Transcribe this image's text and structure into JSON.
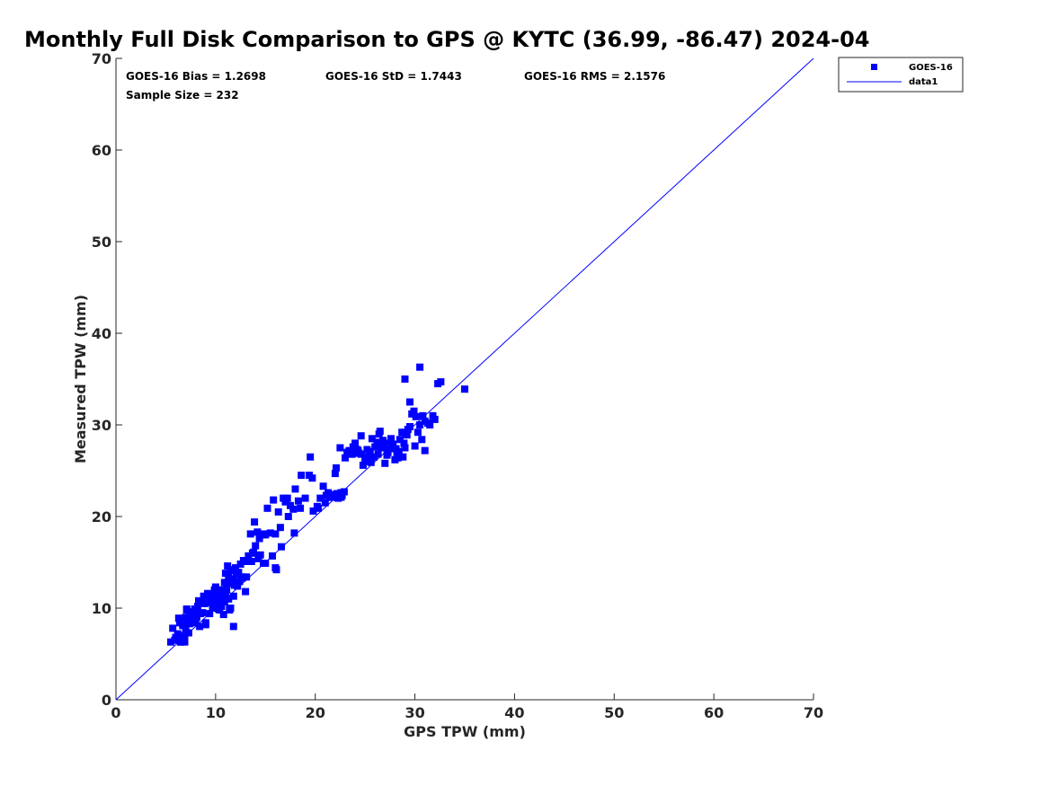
{
  "chart_data": {
    "type": "scatter",
    "title": "Monthly Full Disk Comparison to GPS @ KYTC (36.99, -86.47) 2024-04",
    "xlabel": "GPS TPW (mm)",
    "ylabel": "Measured TPW (mm)",
    "xlim": [
      0,
      70
    ],
    "ylim": [
      0,
      70
    ],
    "xticks": [
      0,
      10,
      20,
      30,
      40,
      50,
      60,
      70
    ],
    "yticks": [
      0,
      10,
      20,
      30,
      40,
      50,
      60,
      70
    ],
    "xtick_labels": [
      "0",
      "10",
      "20",
      "30",
      "40",
      "50",
      "60",
      "70"
    ],
    "ytick_labels": [
      "0",
      "10",
      "20",
      "30",
      "40",
      "50",
      "60",
      "70"
    ],
    "grid": false,
    "legend_position": "top-right-outside",
    "stats": {
      "bias": "GOES-16 Bias = 1.2698",
      "std": "GOES-16 StD = 1.7443",
      "rms": "GOES-16 RMS = 2.1576",
      "sample_size": "Sample Size = 232"
    },
    "series": [
      {
        "name": "GOES-16",
        "kind": "scatter",
        "marker": "square",
        "color": "#0000ff",
        "x": [
          5.5,
          5.7,
          5.9,
          6.0,
          6.2,
          6.3,
          6.4,
          6.5,
          6.6,
          6.7,
          6.8,
          6.9,
          7.0,
          7.0,
          7.1,
          7.2,
          7.3,
          7.4,
          7.5,
          7.6,
          7.7,
          7.8,
          8.0,
          8.1,
          8.2,
          8.3,
          8.5,
          8.6,
          8.8,
          8.9,
          9.0,
          9.1,
          9.2,
          9.4,
          9.5,
          9.6,
          9.7,
          9.8,
          9.9,
          10.0,
          10.0,
          10.1,
          10.2,
          10.3,
          10.3,
          10.4,
          10.5,
          10.6,
          10.7,
          10.8,
          10.9,
          11.0,
          11.0,
          11.1,
          11.2,
          11.3,
          11.3,
          11.4,
          11.5,
          11.6,
          11.7,
          11.8,
          11.9,
          12.0,
          12.1,
          12.2,
          12.3,
          12.5,
          12.7,
          12.9,
          13.0,
          13.3,
          13.5,
          13.7,
          13.9,
          14.0,
          14.2,
          14.4,
          14.6,
          14.8,
          15.0,
          15.2,
          15.5,
          15.8,
          16.0,
          16.3,
          16.5,
          16.8,
          17.0,
          17.3,
          17.5,
          17.8,
          18.0,
          18.3,
          18.6,
          19.0,
          19.5,
          19.8,
          20.2,
          20.5,
          20.8,
          21.0,
          21.2,
          21.3,
          21.5,
          21.6,
          21.8,
          22.0,
          22.1,
          22.2,
          22.3,
          22.5,
          22.7,
          22.9,
          23.0,
          23.2,
          23.4,
          23.6,
          23.8,
          24.0,
          24.2,
          24.4,
          24.6,
          24.8,
          25.0,
          25.2,
          25.4,
          25.5,
          25.7,
          25.9,
          26.0,
          26.2,
          26.3,
          26.5,
          26.7,
          26.9,
          27.0,
          27.2,
          27.4,
          27.6,
          27.8,
          28.0,
          28.2,
          28.4,
          28.5,
          28.7,
          28.9,
          29.0,
          29.3,
          29.5,
          29.7,
          29.9,
          30.1,
          30.3,
          30.5,
          30.8,
          31.0,
          31.3,
          31.5,
          32.0,
          32.3,
          32.6,
          35.0,
          30.5,
          29.0,
          29.5,
          6.1,
          7.4,
          8.7,
          9.3,
          10.6,
          11.1,
          11.7,
          12.4,
          13.1,
          14.3,
          15.7,
          16.1,
          16.6,
          17.9,
          19.7,
          21.1,
          22.6,
          24.1,
          25.3,
          26.4,
          27.3,
          28.1,
          28.8,
          30.0,
          31.0,
          11.8,
          12.8,
          15.0,
          16.0,
          13.8,
          14.9,
          18.5,
          20.3,
          22.6,
          24.6,
          26.2,
          9.9,
          10.8,
          11.9,
          8.4,
          7.9,
          6.9,
          6.5,
          9.0,
          10.4,
          11.5,
          12.6,
          13.6,
          14.5,
          17.2,
          19.4,
          21.6,
          23.7,
          25.6,
          27.6,
          29.2,
          30.7,
          31.8,
          24.3,
          26.8,
          28.3,
          12.2,
          10.9,
          11.4,
          8.1,
          7.1
        ],
        "y": [
          6.3,
          7.8,
          6.5,
          6.8,
          7.2,
          8.9,
          8.4,
          6.3,
          7.0,
          8.1,
          8.6,
          6.3,
          7.6,
          9.0,
          9.9,
          8.3,
          7.3,
          9.2,
          8.8,
          9.6,
          9.4,
          8.4,
          8.7,
          9.0,
          10.2,
          10.8,
          9.4,
          10.6,
          11.3,
          10.5,
          8.2,
          11.0,
          11.6,
          9.4,
          10.6,
          11.3,
          10.0,
          11.5,
          11.9,
          10.4,
          12.3,
          11.1,
          10.6,
          9.9,
          11.7,
          12.0,
          11.0,
          10.2,
          11.4,
          10.7,
          12.8,
          13.8,
          11.6,
          12.3,
          14.6,
          11.0,
          13.4,
          10.0,
          12.7,
          14.1,
          13.0,
          11.3,
          12.5,
          14.4,
          13.7,
          12.4,
          13.9,
          14.8,
          13.3,
          15.1,
          11.8,
          15.7,
          18.1,
          16.0,
          19.4,
          16.8,
          18.3,
          17.6,
          18.0,
          14.9,
          18.0,
          20.9,
          18.2,
          21.8,
          18.1,
          20.5,
          18.8,
          22.0,
          21.6,
          20.0,
          21.2,
          20.8,
          23.0,
          21.7,
          24.5,
          22.0,
          26.5,
          20.6,
          21.1,
          22.0,
          23.3,
          21.5,
          22.3,
          22.6,
          22.1,
          22.4,
          22.2,
          24.7,
          25.3,
          22.5,
          22.0,
          27.5,
          22.3,
          22.7,
          26.4,
          27.0,
          27.2,
          26.8,
          27.6,
          28.0,
          27.3,
          26.9,
          28.8,
          25.6,
          26.1,
          27.3,
          26.0,
          27.1,
          28.5,
          26.5,
          27.6,
          28.1,
          26.8,
          29.3,
          27.5,
          28.0,
          25.8,
          26.7,
          27.4,
          28.2,
          27.9,
          26.2,
          26.9,
          27.1,
          28.4,
          29.2,
          28.0,
          27.5,
          29.5,
          29.8,
          31.2,
          31.5,
          30.9,
          29.2,
          30.0,
          31.0,
          30.4,
          30.2,
          30.0,
          30.6,
          34.5,
          34.7,
          33.9,
          36.3,
          35.0,
          32.5,
          6.7,
          8.3,
          9.5,
          11.0,
          11.6,
          12.0,
          13.2,
          12.9,
          13.4,
          15.4,
          15.7,
          14.2,
          16.7,
          18.2,
          24.2,
          22.3,
          22.1,
          27.0,
          26.5,
          29.0,
          27.0,
          27.4,
          26.5,
          27.7,
          27.2,
          8.0,
          15.2,
          14.9,
          14.4,
          16.1,
          18.1,
          20.9,
          20.9,
          22.6,
          26.8,
          27.6,
          12.0,
          9.3,
          14.2,
          8.0,
          9.9,
          6.6,
          6.3,
          8.4,
          9.8,
          10.0,
          13.4,
          15.1,
          15.8,
          22.0,
          24.5,
          22.1,
          26.8,
          25.9,
          28.5,
          28.9,
          28.4,
          31.0,
          27.2,
          28.3,
          26.4,
          13.9,
          10.7,
          9.8,
          9.2,
          9.8
        ]
      },
      {
        "name": "data1",
        "kind": "line",
        "color": "#0000ff",
        "x": [
          0,
          70
        ],
        "y": [
          0,
          70
        ]
      }
    ]
  }
}
